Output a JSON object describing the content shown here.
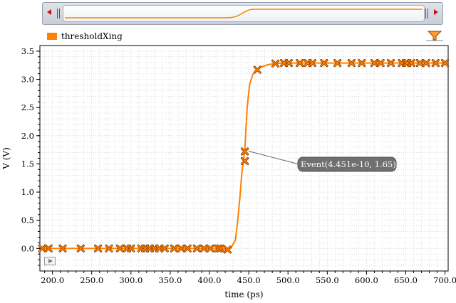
{
  "legend": {
    "label": "thresholdXing",
    "color": "#ff7f00"
  },
  "toolbar": {
    "filter_icon": "filter-icon",
    "play_icon": "play-icon"
  },
  "marker": {
    "label": "Event(4.451e-10, 1.65)",
    "x": 445.1,
    "y": 1.65
  },
  "chart_data": {
    "type": "line",
    "xlabel": "time (ps)",
    "ylabel": "V (V)",
    "xlim": [
      184,
      704
    ],
    "ylim": [
      -0.4,
      3.6
    ],
    "grid": true,
    "x_ticks": [
      "200.0",
      "250.0",
      "300.0",
      "350.0",
      "400.0",
      "450.0",
      "500.0",
      "550.0",
      "600.0",
      "650.0",
      "700.0"
    ],
    "y_ticks": [
      "0.0",
      "0.5",
      "1.0",
      "1.5",
      "2.0",
      "2.5",
      "3.0",
      "3.5"
    ],
    "series": [
      {
        "name": "thresholdXing",
        "color": "#ff7f00",
        "x": [
          187,
          195,
          213,
          236,
          258,
          272,
          286,
          295,
          300,
          313,
          318,
          324,
          330,
          336,
          343,
          355,
          364,
          372,
          384,
          393,
          401,
          411,
          414,
          423,
          427,
          433,
          436,
          439,
          441,
          443,
          444,
          445,
          446,
          448,
          451,
          455,
          460,
          466,
          475,
          483,
          495,
          509,
          515,
          525,
          531,
          546,
          563,
          581,
          594,
          610,
          618,
          631,
          645,
          652,
          657,
          668,
          676,
          688,
          700
        ],
        "y": [
          0,
          0,
          0,
          0,
          0,
          0,
          0,
          0,
          0,
          0,
          0,
          0,
          0,
          0,
          0,
          0,
          0,
          0,
          0,
          0,
          0,
          0,
          0,
          -0.02,
          0,
          0.15,
          0.5,
          0.95,
          1.3,
          1.55,
          1.65,
          1.72,
          2.0,
          2.5,
          2.9,
          3.08,
          3.17,
          3.22,
          3.26,
          3.28,
          3.29,
          3.29,
          3.29,
          3.29,
          3.29,
          3.29,
          3.29,
          3.29,
          3.29,
          3.29,
          3.29,
          3.29,
          3.29,
          3.29,
          3.29,
          3.29,
          3.29,
          3.29,
          3.29
        ]
      }
    ],
    "markers": {
      "x": [
        187,
        195,
        213,
        236,
        258,
        272,
        286,
        295,
        300,
        313,
        318,
        324,
        330,
        336,
        343,
        355,
        364,
        372,
        384,
        393,
        401,
        411,
        414,
        423,
        445,
        445,
        461,
        484,
        495,
        501,
        515,
        525,
        531,
        546,
        563,
        581,
        594,
        610,
        618,
        631,
        645,
        650,
        652,
        657,
        668,
        676,
        688,
        700
      ],
      "y": [
        0,
        0,
        0,
        0,
        0,
        0,
        0,
        0,
        0,
        0,
        0,
        0,
        0,
        0,
        0,
        0,
        0,
        0,
        0,
        0,
        0,
        0,
        0,
        -0.02,
        1.55,
        1.72,
        3.17,
        3.28,
        3.29,
        3.29,
        3.29,
        3.29,
        3.29,
        3.29,
        3.29,
        3.29,
        3.29,
        3.29,
        3.29,
        3.29,
        3.29,
        3.29,
        3.29,
        3.29,
        3.29,
        3.29,
        3.29,
        3.29
      ]
    }
  }
}
